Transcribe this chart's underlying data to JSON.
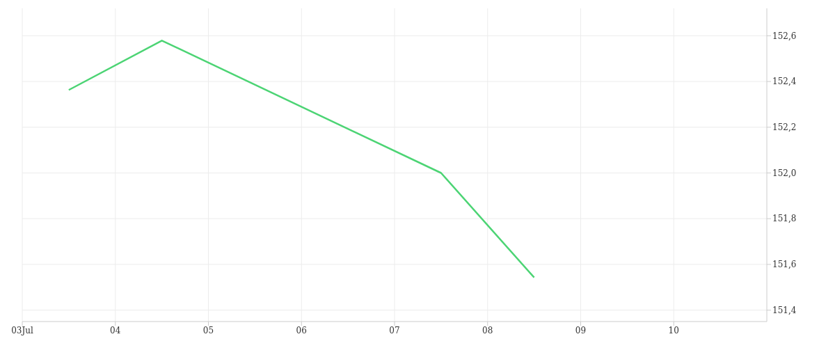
{
  "chart_data": {
    "type": "line",
    "x": [
      "--07-03T12:00",
      "--07-04T12:00",
      "--07-07T12:00",
      "--07-08T12:00"
    ],
    "series": [
      {
        "color": "#4cd474",
        "values": [
          152.363,
          152.579,
          152.0,
          151.543
        ]
      }
    ],
    "xlim": [
      "--07-03",
      "--07-11"
    ],
    "xticks": [
      {
        "value": "--07-03",
        "label": "03Jul"
      },
      {
        "value": "--07-04",
        "label": "04"
      },
      {
        "value": "--07-05",
        "label": "05"
      },
      {
        "value": "--07-06",
        "label": "06"
      },
      {
        "value": "--07-07",
        "label": "07"
      },
      {
        "value": "--07-08",
        "label": "08"
      },
      {
        "value": "--07-09",
        "label": "09"
      },
      {
        "value": "--07-10",
        "label": "10"
      }
    ],
    "ylim": [
      151.35,
      152.72
    ],
    "yticks": [
      {
        "value": 151.4,
        "label": "151,4"
      },
      {
        "value": 151.6,
        "label": "151,6"
      },
      {
        "value": 151.8,
        "label": "151,8"
      },
      {
        "value": 152.0,
        "label": "152,0"
      },
      {
        "value": 152.2,
        "label": "152,2"
      },
      {
        "value": 152.4,
        "label": "152,4"
      },
      {
        "value": 152.6,
        "label": "152,6"
      }
    ],
    "grid": true,
    "marker": "none",
    "line_style": "solid"
  }
}
